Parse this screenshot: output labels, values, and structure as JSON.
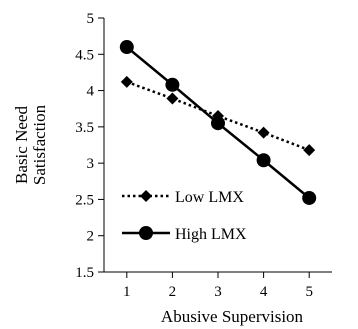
{
  "chart_data": {
    "type": "line",
    "xlabel": "Abusive Supervision",
    "ylabel_lines": [
      "Basic Need",
      "Satisfaction"
    ],
    "x": [
      1,
      2,
      3,
      4,
      5
    ],
    "xticks": [
      "1",
      "2",
      "3",
      "4",
      "5"
    ],
    "yticks": [
      "1.5",
      "2",
      "2.5",
      "3",
      "3.5",
      "4",
      "4.5",
      "5"
    ],
    "xlim": [
      0.5,
      5.5
    ],
    "ylim": [
      1.5,
      5
    ],
    "grid": false,
    "legend_position": "bottom-left",
    "series": [
      {
        "name": "Low LMX",
        "values": [
          4.12,
          3.89,
          3.65,
          3.42,
          3.18
        ],
        "line_style": "dotted",
        "marker": "diamond",
        "color": "#000000"
      },
      {
        "name": "High LMX",
        "values": [
          4.6,
          4.08,
          3.55,
          3.04,
          2.52
        ],
        "line_style": "solid",
        "marker": "circle",
        "color": "#000000"
      }
    ]
  }
}
